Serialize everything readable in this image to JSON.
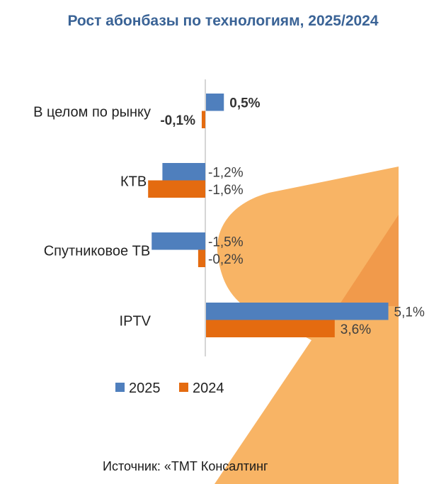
{
  "title": "Рост абонбазы по технологиям, 2025/2024",
  "source": "Источник: «ТМТ Консалтинг",
  "colors": {
    "title": "#3a6396",
    "series_2025": "#4f7fbd",
    "series_2024": "#e46b10",
    "decor_light": "#f8b465",
    "decor_dark": "#f19a4b",
    "axis": "#c8c8c8"
  },
  "chart_data": {
    "type": "bar",
    "orientation": "horizontal",
    "title": "Рост абонбазы по технологиям, 2025/2024",
    "xlabel": "",
    "ylabel": "",
    "categories": [
      "В целом по рынку",
      "КТВ",
      "Спутниковое ТВ",
      "IPTV"
    ],
    "series": [
      {
        "name": "2025",
        "values": [
          0.5,
          -1.2,
          -1.5,
          5.1
        ],
        "labels": [
          "0,5%",
          "-1,2%",
          "-1,5%",
          "5,1%"
        ]
      },
      {
        "name": "2024",
        "values": [
          -0.1,
          -1.6,
          -0.2,
          3.6
        ],
        "labels": [
          "-0,1%",
          "-1,6%",
          "-0,2%",
          "3,6%"
        ]
      }
    ],
    "unit": "%",
    "xlim": [
      -1.6,
      5.1
    ],
    "grid": false,
    "legend": {
      "position": "bottom",
      "entries": [
        "2025",
        "2024"
      ]
    },
    "annotations": []
  }
}
